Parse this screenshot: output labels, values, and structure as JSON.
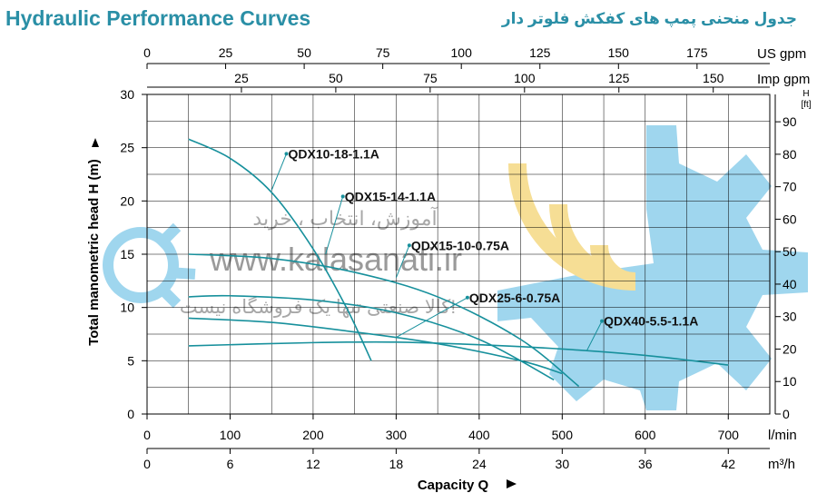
{
  "title": "Hydraulic Performance Curves",
  "title_fa": "جدول منحنی پمپ های کفکش فلوتر دار",
  "colors": {
    "title": "#2a8fa6",
    "curve": "#17909c",
    "grid": "#000000",
    "watermark_gear": "#9fd6ee",
    "watermark_arcs": "#f6de95",
    "watermark_text": "#9a9a9a"
  },
  "watermark": {
    "line1": "آموزش، انتخاب ، خرید",
    "url": "www.kalasanati.ir",
    "line3": "کالا صنعتی تنها یک فروشگاه نیست!"
  },
  "chart_data": {
    "type": "line",
    "title": "Hydraulic Performance Curves",
    "x": {
      "label": "Capacity Q",
      "unit": "l/min",
      "lim": [
        0,
        750
      ],
      "ticks": [
        0,
        100,
        200,
        300,
        400,
        500,
        600,
        700
      ]
    },
    "x_secondary": [
      {
        "unit": "m³/h",
        "ticks": [
          0,
          6,
          12,
          18,
          24,
          30,
          36,
          42
        ]
      },
      {
        "unit": "US gpm",
        "ticks": [
          0,
          25,
          50,
          75,
          100,
          125,
          150,
          175
        ]
      },
      {
        "unit": "Imp gpm",
        "ticks": [
          25,
          50,
          75,
          100,
          125,
          150
        ]
      }
    ],
    "y": {
      "label": "Total manometric head H (m)",
      "lim": [
        0,
        30
      ],
      "ticks": [
        0,
        5,
        10,
        15,
        20,
        25,
        30
      ]
    },
    "y_secondary": {
      "unit_top": "H",
      "unit_bottom": "[ft]",
      "ticks": [
        0,
        10,
        20,
        30,
        40,
        50,
        60,
        70,
        80,
        90
      ]
    },
    "grid": true,
    "series": [
      {
        "name": "QDX10-18-1.1A",
        "x": [
          50,
          100,
          150,
          200,
          240,
          270
        ],
        "y": [
          25.8,
          24,
          20.8,
          15.5,
          10,
          5
        ]
      },
      {
        "name": "QDX15-14-1.1A",
        "x": [
          50,
          150,
          250,
          350,
          450,
          520
        ],
        "y": [
          15,
          14.6,
          13.3,
          11,
          7,
          2.6
        ]
      },
      {
        "name": "QDX15-10-0.75A",
        "x": [
          50,
          100,
          200,
          300,
          400,
          490
        ],
        "y": [
          11,
          11.1,
          10.7,
          9.5,
          7,
          3.2
        ]
      },
      {
        "name": "QDX25-6-0.75A",
        "x": [
          50,
          150,
          250,
          350,
          450,
          500
        ],
        "y": [
          9,
          8.6,
          7.7,
          6.6,
          5,
          3.8
        ]
      },
      {
        "name": "QDX40-5.5-1.1A",
        "x": [
          50,
          200,
          300,
          400,
          500,
          600,
          700
        ],
        "y": [
          6.4,
          6.7,
          6.75,
          6.5,
          6.1,
          5.5,
          4.6
        ]
      }
    ]
  }
}
